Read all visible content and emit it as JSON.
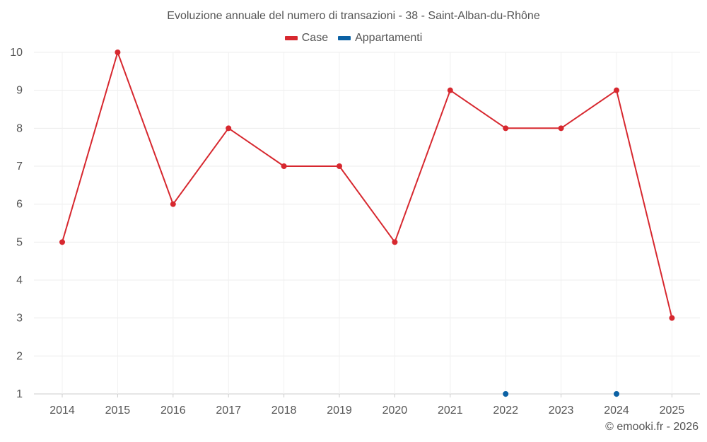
{
  "chart_data": {
    "type": "line",
    "title": "Evoluzione annuale del numero di transazioni - 38 - Saint-Alban-du-Rhône",
    "categories": [
      "2014",
      "2015",
      "2016",
      "2017",
      "2018",
      "2019",
      "2020",
      "2021",
      "2022",
      "2023",
      "2024",
      "2025"
    ],
    "yticks": [
      "1",
      "2",
      "3",
      "4",
      "5",
      "6",
      "7",
      "8",
      "9",
      "10"
    ],
    "ylim": [
      1,
      10
    ],
    "grid": true,
    "legend_position": "top-center",
    "series": [
      {
        "name": "Case",
        "color": "#d7282f",
        "values": [
          5,
          10,
          6,
          8,
          7,
          7,
          5,
          9,
          8,
          8,
          9,
          3
        ]
      },
      {
        "name": "Appartamenti",
        "color": "#0b61a4",
        "values": [
          null,
          null,
          null,
          null,
          null,
          null,
          null,
          null,
          1,
          null,
          1,
          null
        ]
      }
    ],
    "xlabel": "",
    "ylabel": ""
  },
  "credit": "© emooki.fr - 2026"
}
